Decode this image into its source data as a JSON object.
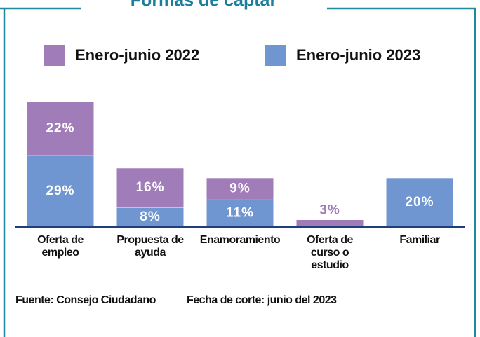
{
  "chart_data": {
    "type": "stacked_bar",
    "title": "Formas de captar",
    "categories": [
      "Oferta de empleo",
      "Propuesta de ayuda",
      "Enamoramiento",
      "Oferta de curso o estudio",
      "Familiar"
    ],
    "series": [
      {
        "name": "Enero-junio 2023",
        "color": "#7096d2",
        "values": [
          29,
          8,
          11,
          null,
          20
        ],
        "value_labels": [
          "29%",
          "8%",
          "11%",
          null,
          "20%"
        ]
      },
      {
        "name": "Enero-junio 2022",
        "color": "#a07cb9",
        "values": [
          22,
          16,
          9,
          3,
          null
        ],
        "value_labels": [
          "22%",
          "16%",
          "9%",
          "3%",
          null
        ]
      }
    ],
    "source": "Fuente: Consejo Ciudadano",
    "date_note": "Fecha de corte: junio del 2023"
  }
}
